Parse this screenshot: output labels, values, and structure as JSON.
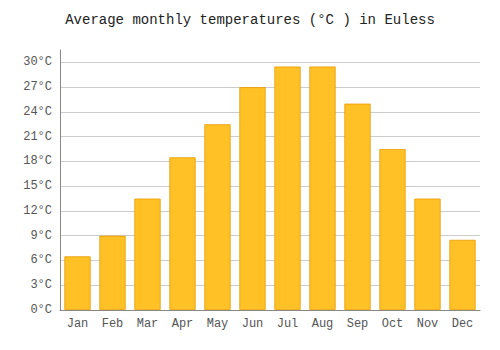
{
  "chart_data": {
    "type": "bar",
    "title": "Average monthly temperatures (°C ) in Euless",
    "categories": [
      "Jan",
      "Feb",
      "Mar",
      "Apr",
      "May",
      "Jun",
      "Jul",
      "Aug",
      "Sep",
      "Oct",
      "Nov",
      "Dec"
    ],
    "values": [
      6.5,
      9.0,
      13.5,
      18.5,
      22.5,
      27.0,
      29.5,
      29.5,
      25.0,
      19.5,
      13.5,
      8.5
    ],
    "color": "#FFC125",
    "ylim": [
      0,
      31.5
    ],
    "yticks": [
      {
        "value": 0,
        "label": "0°C"
      },
      {
        "value": 3,
        "label": "3°C"
      },
      {
        "value": 6,
        "label": "6°C"
      },
      {
        "value": 9,
        "label": "9°C"
      },
      {
        "value": 12,
        "label": "12°C"
      },
      {
        "value": 15,
        "label": "15°C"
      },
      {
        "value": 18,
        "label": "18°C"
      },
      {
        "value": 21,
        "label": "21°C"
      },
      {
        "value": 24,
        "label": "24°C"
      },
      {
        "value": 27,
        "label": "27°C"
      },
      {
        "value": 30,
        "label": "30°C"
      }
    ],
    "grid": true
  }
}
